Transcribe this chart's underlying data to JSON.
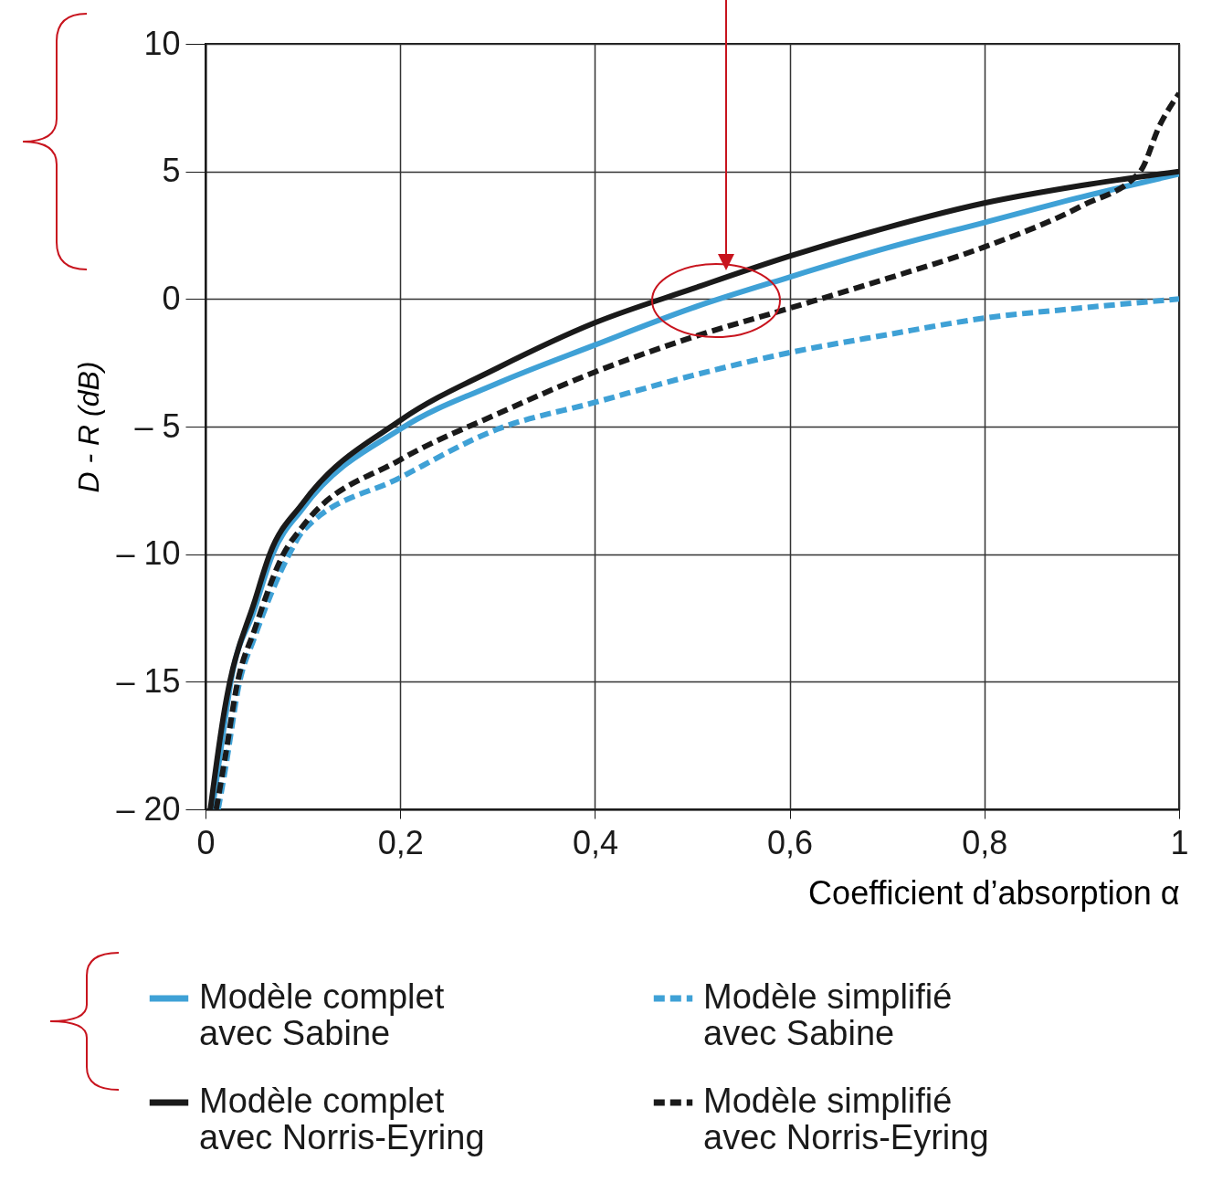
{
  "chart_data": {
    "type": "line",
    "xlabel": "Coefficient d’absorption α",
    "ylabel": "D - R (dB)",
    "xlim": [
      0,
      1
    ],
    "ylim": [
      -20,
      10
    ],
    "xticks": [
      0,
      {
        "value": 0.2,
        "label": "0,2"
      },
      {
        "value": 0.4,
        "label": "0,4"
      },
      {
        "value": 0.6,
        "label": "0,6"
      },
      {
        "value": 0.8,
        "label": "0,8"
      },
      1
    ],
    "yticks": [
      {
        "value": -20,
        "label": "– 20"
      },
      {
        "value": -15,
        "label": "– 15"
      },
      {
        "value": -10,
        "label": "– 10"
      },
      {
        "value": -5,
        "label": "– 5"
      },
      0,
      5,
      10
    ],
    "grid": true,
    "legend": "bottom",
    "marker": "none",
    "series": [
      {
        "name": "Modèle complet\navec Sabine",
        "color": "#3fa1d6",
        "line_style": "solid",
        "x": [
          0.007,
          0.02,
          0.026,
          0.05,
          0.069,
          0.1,
          0.2,
          0.3,
          0.4,
          0.5,
          0.6,
          0.7,
          0.8,
          0.9,
          1
        ],
        "values": [
          -20,
          -16.5,
          -15,
          -12.2,
          -10,
          -8.2,
          -5.1,
          -3.3,
          -1.8,
          -0.35,
          0.86,
          2.0,
          3.0,
          4.0,
          4.9
        ]
      },
      {
        "name": "Modèle complet\navec Norris-Eyring",
        "color": "#1a1a1a",
        "line_style": "solid",
        "x": [
          0.005,
          0.02,
          0.025,
          0.05,
          0.066,
          0.1,
          0.2,
          0.3,
          0.4,
          0.5,
          0.6,
          0.7,
          0.8,
          0.9,
          1
        ],
        "values": [
          -20,
          -16,
          -15,
          -11.9,
          -10,
          -8.0,
          -4.76,
          -2.7,
          -0.93,
          0.4,
          1.68,
          2.8,
          3.76,
          4.45,
          5
        ]
      },
      {
        "name": "Modèle simplifié\navec Sabine",
        "color": "#3fa1d6",
        "line_style": "dashed",
        "x": [
          0.013,
          0.02,
          0.035,
          0.05,
          0.086,
          0.1,
          0.2,
          0.3,
          0.4,
          0.5,
          0.6,
          0.7,
          0.8,
          0.9,
          1
        ],
        "values": [
          -20,
          -18.5,
          -15,
          -13.3,
          -10,
          -9.1,
          -7.0,
          -5.1,
          -4.05,
          -3.0,
          -2.1,
          -1.4,
          -0.75,
          -0.35,
          0
        ]
      },
      {
        "name": "Modèle simplifié\navec Norris-Eyring",
        "color": "#1a1a1a",
        "line_style": "dashed",
        "x": [
          0.011,
          0.02,
          0.033,
          0.05,
          0.08,
          0.1,
          0.2,
          0.3,
          0.4,
          0.5,
          0.6,
          0.7,
          0.8,
          0.9,
          0.96,
          0.98,
          1
        ],
        "values": [
          -20,
          -18,
          -15,
          -13.0,
          -10,
          -8.9,
          -6.3,
          -4.5,
          -2.86,
          -1.5,
          -0.36,
          0.8,
          2.04,
          3.65,
          5.0,
          6.8,
          8.06
        ]
      }
    ]
  }
}
